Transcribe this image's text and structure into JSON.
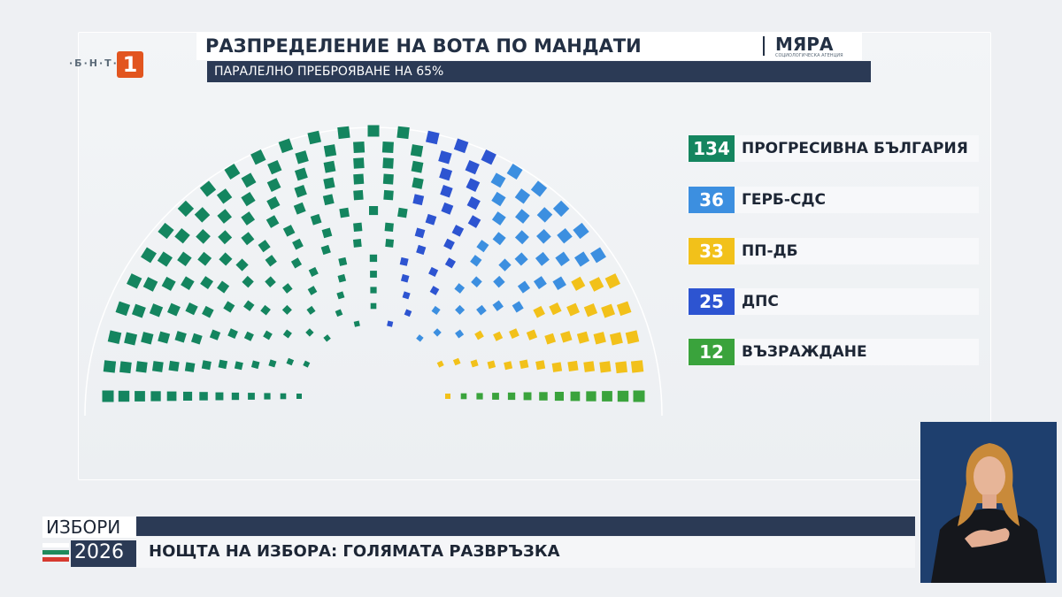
{
  "channel": {
    "logo_text": "·Б·Н·Т·",
    "logo_number": "1"
  },
  "header": {
    "title": "РАЗПРЕДЕЛЕНИЕ НА ВОТА ПО МАНДАТИ",
    "brand": "МЯРА",
    "brand_sub": "СОЦИОЛОГИЧЕСКА АГЕНЦИЯ",
    "subtitle": "ПАРАЛЕЛНО ПРЕБРОЯВАНЕ НА 65%"
  },
  "chart_data": {
    "type": "hemicycle",
    "title": "РАЗПРЕДЕЛЕНИЕ НА ВОТА ПО МАНДАТИ",
    "subtitle": "ПАРАЛЕЛНО ПРЕБРОЯВАНЕ НА 65%",
    "total_seats": 240,
    "legend_position": "right",
    "series": [
      {
        "name": "ПРОГРЕСИВНА БЪЛГАРИЯ",
        "seats": 134,
        "color": "#14855f"
      },
      {
        "name": "ДПС",
        "seats": 25,
        "color": "#2d54d1"
      },
      {
        "name": "ГЕРБ-СДС",
        "seats": 36,
        "color": "#3c8fe0"
      },
      {
        "name": "ПП-ДБ",
        "seats": 33,
        "color": "#f2c11a"
      },
      {
        "name": "ВЪЗРАЖДАНЕ",
        "seats": 12,
        "color": "#3aa33c"
      }
    ]
  },
  "legend": [
    {
      "value": "134",
      "label": "ПРОГРЕСИВНА БЪЛГАРИЯ",
      "color": "#14855f"
    },
    {
      "value": "36",
      "label": "ГЕРБ-СДС",
      "color": "#3c8fe0"
    },
    {
      "value": "33",
      "label": "ПП-ДБ",
      "color": "#f2c11a"
    },
    {
      "value": "25",
      "label": "ДПС",
      "color": "#2d54d1"
    },
    {
      "value": "12",
      "label": "ВЪЗРАЖДАНЕ",
      "color": "#3aa33c"
    }
  ],
  "ticker": {
    "label_top": "ИЗБОРИ",
    "year": "2026",
    "headline": "НОЩТА НА ИЗБОРА: ГОЛЯМАТА РАЗВРЪЗКА"
  }
}
